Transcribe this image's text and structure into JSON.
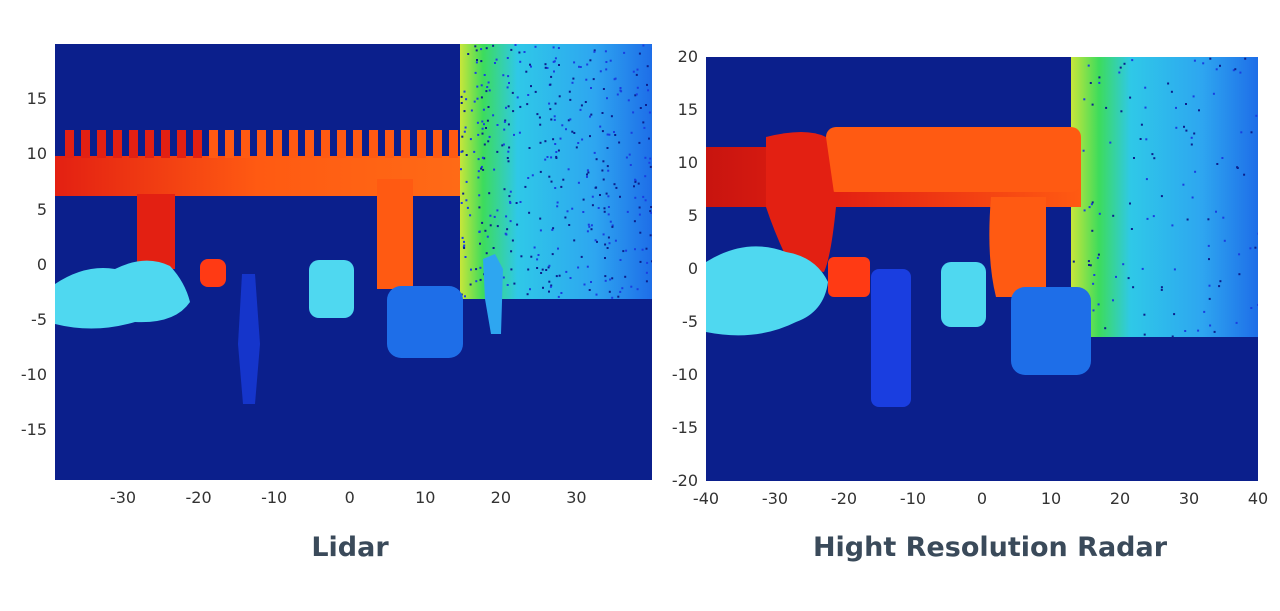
{
  "colors": {
    "background": "#0b1f8c",
    "red": "#e32012",
    "dark_red": "#c8140f",
    "orange": "#ff5a12",
    "orange_red": "#ff3a14",
    "yellow": "#c8e63a",
    "green": "#3ddc5c",
    "cyan": "#2fc8e8",
    "light_cyan": "#4fd8f0",
    "sky_blue": "#2ea6f0",
    "blue": "#1e6ee8",
    "deep_blue": "#1a3ee0",
    "caption_text": "#3a4a5a"
  },
  "chart_data": [
    {
      "type": "heatmap",
      "title": "Lidar",
      "xlim": [
        -39,
        40
      ],
      "ylim": [
        -19.5,
        20
      ],
      "xticks": [
        -30,
        -20,
        -10,
        0,
        10,
        20,
        30
      ],
      "yticks": [
        -15,
        -10,
        -5,
        0,
        5,
        10,
        15
      ],
      "grid": false,
      "legend": "none",
      "colormap": "jet (depth)"
    },
    {
      "type": "heatmap",
      "title": "Hight Resolution Radar",
      "xlim": [
        -40,
        40
      ],
      "ylim": [
        -20,
        20
      ],
      "xticks": [
        -40,
        -30,
        -20,
        -10,
        0,
        10,
        20,
        30,
        40
      ],
      "yticks": [
        -20,
        -15,
        -10,
        -5,
        0,
        5,
        10,
        15,
        20
      ],
      "grid": false,
      "legend": "none",
      "colormap": "jet (depth)"
    }
  ]
}
